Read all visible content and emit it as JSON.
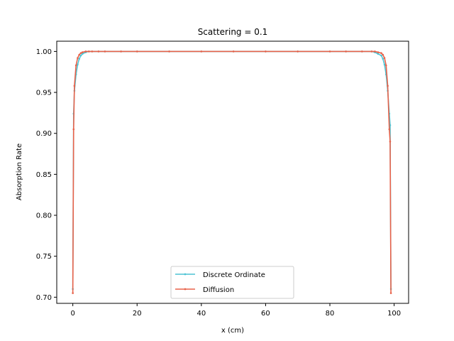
{
  "chart_data": {
    "type": "line",
    "title": "Scattering = 0.1",
    "xlabel": "x (cm)",
    "ylabel": "Absorption Rate",
    "xlim": [
      -5,
      104.5
    ],
    "ylim": [
      0.6925,
      1.0125
    ],
    "xticks": [
      0,
      20,
      40,
      60,
      80,
      100
    ],
    "yticks": [
      0.7,
      0.75,
      0.8,
      0.85,
      0.9,
      0.95,
      1.0
    ],
    "xtick_labels": [
      "0",
      "20",
      "40",
      "60",
      "80",
      "100"
    ],
    "ytick_labels": [
      "0.70",
      "0.75",
      "0.80",
      "0.85",
      "0.90",
      "0.95",
      "1.00"
    ],
    "grid": false,
    "legend_position": "lower center",
    "series": [
      {
        "name": "Discrete Ordinate",
        "color": "#4dc4d4",
        "marker": "dot",
        "x": [
          0,
          0.25,
          0.5,
          1,
          1.5,
          2,
          2.5,
          3,
          4,
          5,
          6,
          8,
          10,
          15,
          20,
          30,
          40,
          50,
          60,
          70,
          80,
          85,
          90,
          93,
          94,
          95,
          96,
          96.5,
          97,
          97.5,
          98,
          98.5,
          98.75,
          99
        ],
        "y": [
          0.71,
          0.924,
          0.952,
          0.972,
          0.984,
          0.991,
          0.995,
          0.997,
          0.999,
          1.0,
          1.0,
          1.0,
          1.0,
          1.0,
          1.0,
          1.0,
          1.0,
          1.0,
          1.0,
          1.0,
          1.0,
          1.0,
          1.0,
          1.0,
          0.999,
          0.997,
          0.995,
          0.991,
          0.984,
          0.972,
          0.952,
          0.924,
          0.91,
          0.71
        ]
      },
      {
        "name": "Diffusion",
        "color": "#e8624a",
        "marker": "dot",
        "x": [
          0,
          0.25,
          0.5,
          1,
          1.5,
          2,
          2.5,
          3,
          4,
          5,
          6,
          8,
          10,
          15,
          20,
          30,
          40,
          50,
          60,
          70,
          80,
          85,
          90,
          93,
          94,
          95,
          96,
          96.5,
          97,
          97.5,
          98,
          98.5,
          98.75,
          99
        ],
        "y": [
          0.705,
          0.905,
          0.958,
          0.983,
          0.992,
          0.996,
          0.998,
          0.999,
          1.0,
          1.0,
          1.0,
          1.0,
          1.0,
          1.0,
          1.0,
          1.0,
          1.0,
          1.0,
          1.0,
          1.0,
          1.0,
          1.0,
          1.0,
          1.0,
          1.0,
          0.999,
          0.998,
          0.996,
          0.992,
          0.983,
          0.958,
          0.905,
          0.89,
          0.705
        ]
      }
    ]
  }
}
